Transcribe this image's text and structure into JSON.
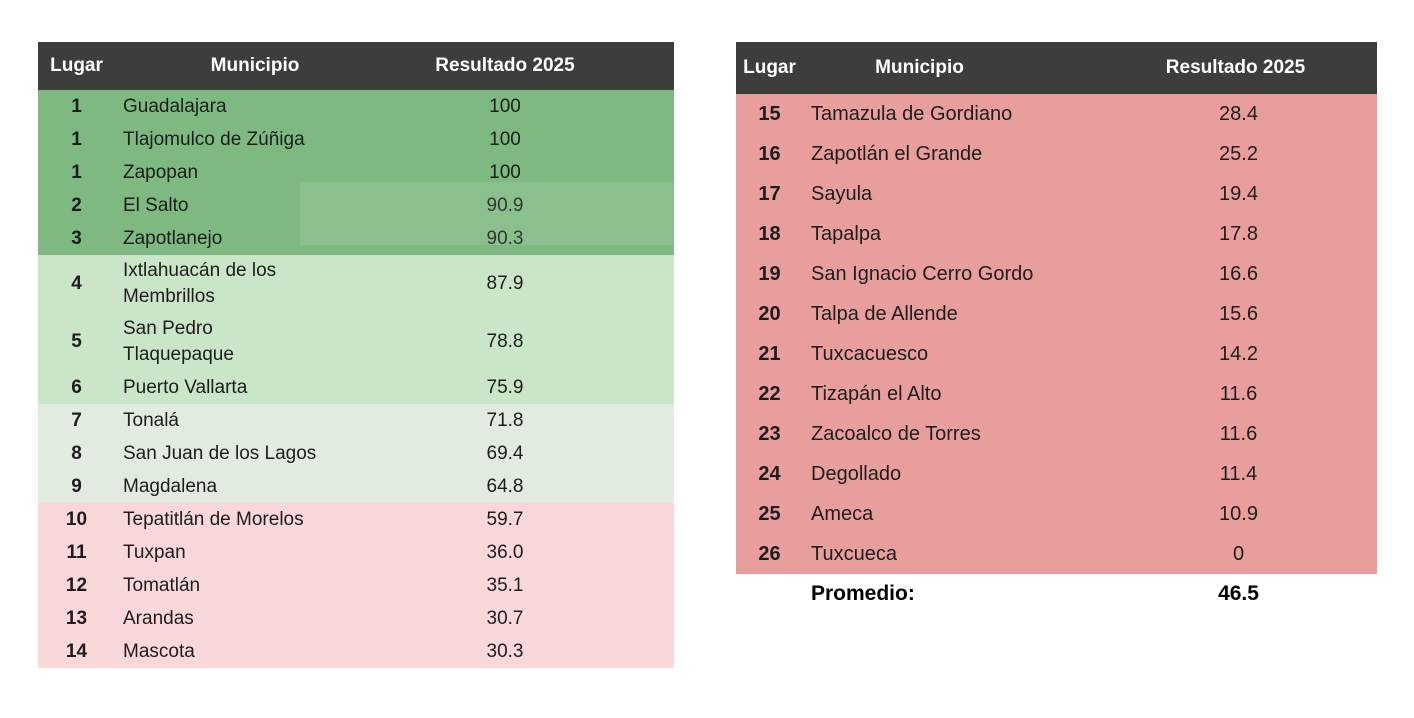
{
  "columns": {
    "lugar": "Lugar",
    "municipio": "Municipio",
    "resultado": "Resultado 2025"
  },
  "left_table": {
    "rows": [
      {
        "lugar": "1",
        "municipio": "Guadalajara",
        "resultado": "100",
        "tier": "green-dark"
      },
      {
        "lugar": "1",
        "municipio": "Tlajomulco de Zúñiga",
        "resultado": "100",
        "tier": "green-dark"
      },
      {
        "lugar": "1",
        "municipio": "Zapopan",
        "resultado": "100",
        "tier": "green-dark"
      },
      {
        "lugar": "2",
        "municipio": "El Salto",
        "resultado": "90.9",
        "tier": "green-dark"
      },
      {
        "lugar": "3",
        "municipio": "Zapotlanejo",
        "resultado": "90.3",
        "tier": "green-dark"
      },
      {
        "lugar": "4",
        "municipio": "Ixtlahuacán de los\nMembrillos",
        "resultado": "87.9",
        "tier": "green-light"
      },
      {
        "lugar": "5",
        "municipio": "San Pedro\nTlaquepaque",
        "resultado": "78.8",
        "tier": "green-light"
      },
      {
        "lugar": "6",
        "municipio": "Puerto Vallarta",
        "resultado": "75.9",
        "tier": "green-light"
      },
      {
        "lugar": "7",
        "municipio": "Tonalá",
        "resultado": "71.8",
        "tier": "green-pale"
      },
      {
        "lugar": "8",
        "municipio": "San Juan de los Lagos",
        "resultado": "69.4",
        "tier": "green-pale"
      },
      {
        "lugar": "9",
        "municipio": "Magdalena",
        "resultado": "64.8",
        "tier": "green-pale"
      },
      {
        "lugar": "10",
        "municipio": "Tepatitlán de Morelos",
        "resultado": "59.7",
        "tier": "pink-light"
      },
      {
        "lugar": "11",
        "municipio": "Tuxpan",
        "resultado": "36.0",
        "tier": "pink-light"
      },
      {
        "lugar": "12",
        "municipio": "Tomatlán",
        "resultado": "35.1",
        "tier": "pink-light"
      },
      {
        "lugar": "13",
        "municipio": "Arandas",
        "resultado": "30.7",
        "tier": "pink-light"
      },
      {
        "lugar": "14",
        "municipio": "Mascota",
        "resultado": "30.3",
        "tier": "pink-light"
      }
    ]
  },
  "right_table": {
    "rows": [
      {
        "lugar": "15",
        "municipio": "Tamazula de Gordiano",
        "resultado": "28.4",
        "tier": "pink-dark"
      },
      {
        "lugar": "16",
        "municipio": "Zapotlán el Grande",
        "resultado": "25.2",
        "tier": "pink-dark"
      },
      {
        "lugar": "17",
        "municipio": "Sayula",
        "resultado": "19.4",
        "tier": "pink-dark"
      },
      {
        "lugar": "18",
        "municipio": "Tapalpa",
        "resultado": "17.8",
        "tier": "pink-dark"
      },
      {
        "lugar": "19",
        "municipio": "San Ignacio Cerro Gordo",
        "resultado": "16.6",
        "tier": "pink-dark"
      },
      {
        "lugar": "20",
        "municipio": "Talpa de Allende",
        "resultado": "15.6",
        "tier": "pink-dark"
      },
      {
        "lugar": "21",
        "municipio": "Tuxcacuesco",
        "resultado": "14.2",
        "tier": "pink-dark"
      },
      {
        "lugar": "22",
        "municipio": "Tizapán el Alto",
        "resultado": "11.6",
        "tier": "pink-dark"
      },
      {
        "lugar": "23",
        "municipio": "Zacoalco de Torres",
        "resultado": "11.6",
        "tier": "pink-dark"
      },
      {
        "lugar": "24",
        "municipio": "Degollado",
        "resultado": "11.4",
        "tier": "pink-dark"
      },
      {
        "lugar": "25",
        "municipio": "Ameca",
        "resultado": "10.9",
        "tier": "pink-dark"
      },
      {
        "lugar": "26",
        "municipio": "Tuxcueca",
        "resultado": "0",
        "tier": "pink-dark"
      }
    ],
    "footer": {
      "label": "Promedio:",
      "value": "46.5"
    }
  },
  "colors": {
    "page_bg": "#ffffff",
    "header_bg": "#3d3d3d",
    "header_text": "#ffffff",
    "body_text": "#1d1d1d",
    "green_dark": "#7db981",
    "green_light": "#cbe5c9",
    "green_pale": "#e1ebe0",
    "pink_light": "#f8d8d8",
    "pink_dark": "#e99e9e"
  },
  "chart_data": [
    {
      "type": "table",
      "columns": [
        "Lugar",
        "Municipio",
        "Resultado 2025"
      ],
      "rows": [
        [
          1,
          "Guadalajara",
          100
        ],
        [
          1,
          "Tlajomulco de Zúñiga",
          100
        ],
        [
          1,
          "Zapopan",
          100
        ],
        [
          2,
          "El Salto",
          90.9
        ],
        [
          3,
          "Zapotlanejo",
          90.3
        ],
        [
          4,
          "Ixtlahuacán de los Membrillos",
          87.9
        ],
        [
          5,
          "San Pedro Tlaquepaque",
          78.8
        ],
        [
          6,
          "Puerto Vallarta",
          75.9
        ],
        [
          7,
          "Tonalá",
          71.8
        ],
        [
          8,
          "San Juan de los Lagos",
          69.4
        ],
        [
          9,
          "Magdalena",
          64.8
        ],
        [
          10,
          "Tepatitlán de Morelos",
          59.7
        ],
        [
          11,
          "Tuxpan",
          36.0
        ],
        [
          12,
          "Tomatlán",
          35.1
        ],
        [
          13,
          "Arandas",
          30.7
        ],
        [
          14,
          "Mascota",
          30.3
        ]
      ]
    },
    {
      "type": "table",
      "columns": [
        "Lugar",
        "Municipio",
        "Resultado 2025"
      ],
      "rows": [
        [
          15,
          "Tamazula de Gordiano",
          28.4
        ],
        [
          16,
          "Zapotlán el Grande",
          25.2
        ],
        [
          17,
          "Sayula",
          19.4
        ],
        [
          18,
          "Tapalpa",
          17.8
        ],
        [
          19,
          "San Ignacio Cerro Gordo",
          16.6
        ],
        [
          20,
          "Talpa de Allende",
          15.6
        ],
        [
          21,
          "Tuxcacuesco",
          14.2
        ],
        [
          22,
          "Tizapán el Alto",
          11.6
        ],
        [
          23,
          "Zacoalco de Torres",
          11.6
        ],
        [
          24,
          "Degollado",
          11.4
        ],
        [
          25,
          "Ameca",
          10.9
        ],
        [
          26,
          "Tuxcueca",
          0
        ]
      ],
      "promedio": 46.5
    }
  ]
}
